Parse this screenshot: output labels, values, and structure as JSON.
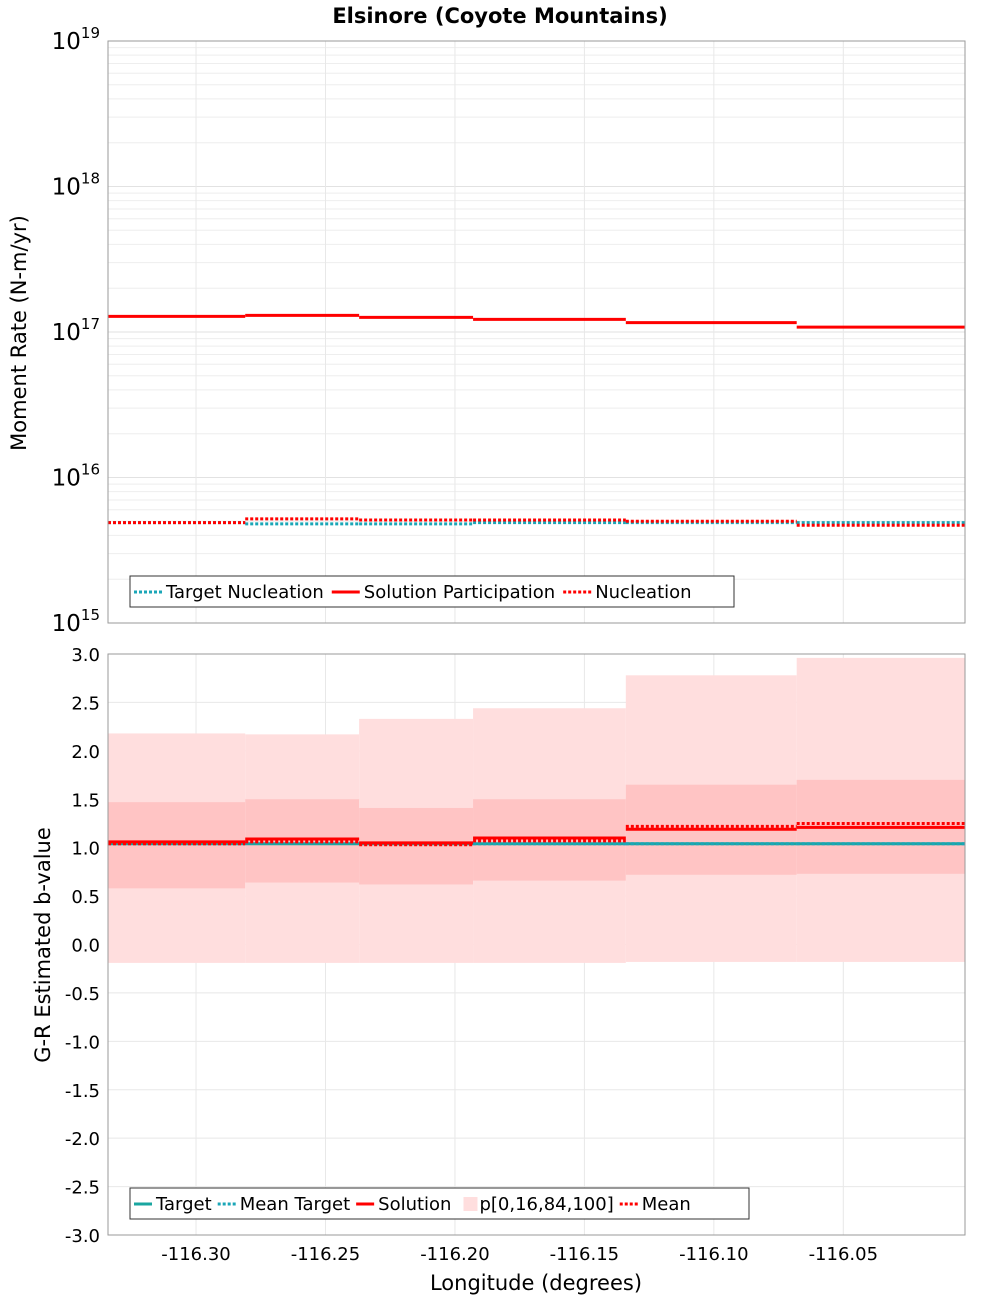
{
  "chart_data": [
    {
      "type": "line",
      "title": "Elsinore (Coyote Mountains)",
      "xlabel": "",
      "ylabel": "Moment Rate (N-m/yr)",
      "yscale": "log",
      "ylim": [
        1000000000000000.0,
        1e+19
      ],
      "xlim": [
        -116.334,
        -116.003
      ],
      "ytick_labels": [
        {
          "value": 1000000000000000.0,
          "base": "10",
          "exp": "15"
        },
        {
          "value": 1e+16,
          "base": "10",
          "exp": "16"
        },
        {
          "value": 1e+17,
          "base": "10",
          "exp": "17"
        },
        {
          "value": 1e+18,
          "base": "10",
          "exp": "18"
        },
        {
          "value": 1e+19,
          "base": "10",
          "exp": "19"
        }
      ],
      "grid": true,
      "legend_position": "bottom-left",
      "series": [
        {
          "name": "Target Nucleation",
          "color": "#1aa6b7",
          "style": "dotted",
          "steps": [
            {
              "x0": -116.334,
              "x1": -116.281,
              "y": 4900000000000000.0
            },
            {
              "x0": -116.281,
              "x1": -116.237,
              "y": 4800000000000000.0
            },
            {
              "x0": -116.237,
              "x1": -116.193,
              "y": 4800000000000000.0
            },
            {
              "x0": -116.193,
              "x1": -116.134,
              "y": 4900000000000000.0
            },
            {
              "x0": -116.134,
              "x1": -116.068,
              "y": 4900000000000000.0
            },
            {
              "x0": -116.068,
              "x1": -116.003,
              "y": 4900000000000000.0
            }
          ]
        },
        {
          "name": "Solution Participation",
          "color": "#ff0000",
          "style": "solid",
          "steps": [
            {
              "x0": -116.334,
              "x1": -116.281,
              "y": 1.28e+17
            },
            {
              "x0": -116.281,
              "x1": -116.237,
              "y": 1.3e+17
            },
            {
              "x0": -116.237,
              "x1": -116.193,
              "y": 1.26e+17
            },
            {
              "x0": -116.193,
              "x1": -116.134,
              "y": 1.22e+17
            },
            {
              "x0": -116.134,
              "x1": -116.068,
              "y": 1.16e+17
            },
            {
              "x0": -116.068,
              "x1": -116.003,
              "y": 1.08e+17
            }
          ]
        },
        {
          "name": "Nucleation",
          "color": "#ff0000",
          "style": "dotted",
          "steps": [
            {
              "x0": -116.334,
              "x1": -116.281,
              "y": 4900000000000000.0
            },
            {
              "x0": -116.281,
              "x1": -116.237,
              "y": 5200000000000000.0
            },
            {
              "x0": -116.237,
              "x1": -116.193,
              "y": 5100000000000000.0
            },
            {
              "x0": -116.193,
              "x1": -116.134,
              "y": 5100000000000000.0
            },
            {
              "x0": -116.134,
              "x1": -116.068,
              "y": 5000000000000000.0
            },
            {
              "x0": -116.068,
              "x1": -116.003,
              "y": 4700000000000000.0
            }
          ]
        }
      ]
    },
    {
      "type": "line",
      "title": "",
      "xlabel": "Longitude (degrees)",
      "ylabel": "G-R Estimated b-value",
      "ylim": [
        -3.0,
        3.0
      ],
      "xlim": [
        -116.334,
        -116.003
      ],
      "yticks": [
        "-3.0",
        "-2.5",
        "-2.0",
        "-1.5",
        "-1.0",
        "-0.5",
        "0.0",
        "0.5",
        "1.0",
        "1.5",
        "2.0",
        "2.5",
        "3.0"
      ],
      "xticks": [
        "-116.30",
        "-116.25",
        "-116.20",
        "-116.15",
        "-116.10",
        "-116.05"
      ],
      "grid": true,
      "legend_position": "bottom-left",
      "bins": [
        {
          "x0": -116.334,
          "x1": -116.281,
          "p0": -0.19,
          "p16": 0.58,
          "p84": 1.47,
          "p100": 2.18,
          "target": 1.04,
          "mean_target": 1.04,
          "solution": 1.06,
          "mean": 1.04
        },
        {
          "x0": -116.281,
          "x1": -116.237,
          "p0": -0.19,
          "p16": 0.64,
          "p84": 1.5,
          "p100": 2.17,
          "target": 1.04,
          "mean_target": 1.05,
          "solution": 1.09,
          "mean": 1.06
        },
        {
          "x0": -116.237,
          "x1": -116.193,
          "p0": -0.19,
          "p16": 0.62,
          "p84": 1.41,
          "p100": 2.33,
          "target": 1.04,
          "mean_target": 1.04,
          "solution": 1.05,
          "mean": 1.03
        },
        {
          "x0": -116.193,
          "x1": -116.134,
          "p0": -0.19,
          "p16": 0.66,
          "p84": 1.5,
          "p100": 2.44,
          "target": 1.04,
          "mean_target": 1.04,
          "solution": 1.1,
          "mean": 1.07
        },
        {
          "x0": -116.134,
          "x1": -116.068,
          "p0": -0.18,
          "p16": 0.72,
          "p84": 1.65,
          "p100": 2.78,
          "target": 1.04,
          "mean_target": 1.04,
          "solution": 1.19,
          "mean": 1.22
        },
        {
          "x0": -116.068,
          "x1": -116.003,
          "p0": -0.18,
          "p16": 0.73,
          "p84": 1.7,
          "p100": 2.96,
          "target": 1.04,
          "mean_target": 1.04,
          "solution": 1.21,
          "mean": 1.25
        }
      ],
      "series": [
        {
          "name": "Target",
          "color": "#1aa6a0",
          "style": "solid",
          "key": "target"
        },
        {
          "name": "Mean Target",
          "color": "#1aa6b7",
          "style": "dotted",
          "key": "mean_target"
        },
        {
          "name": "Solution",
          "color": "#ff0000",
          "style": "solid",
          "key": "solution"
        },
        {
          "name": "p[0,16,84,100]",
          "color": "#ffc4c4",
          "style": "band",
          "key": "band"
        },
        {
          "name": "Mean",
          "color": "#ff0000",
          "style": "dotted",
          "key": "mean"
        }
      ]
    }
  ]
}
